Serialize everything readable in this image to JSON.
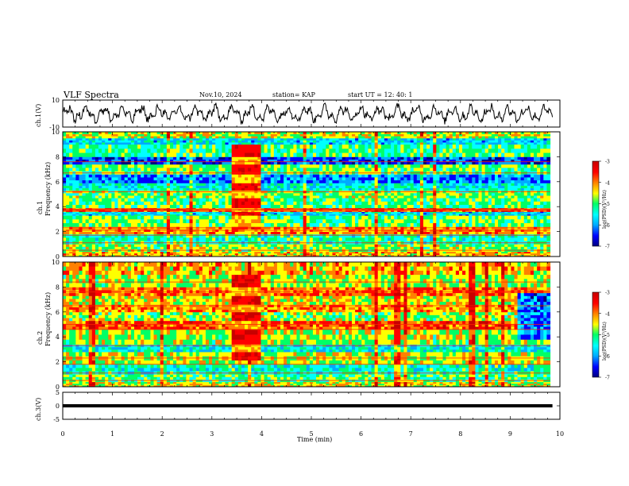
{
  "header": {
    "title": "VLF Spectra",
    "date": "Nov.10, 2024",
    "station": "station= KAP",
    "start": "start  UT =   12: 40: 1"
  },
  "colorbar": {
    "label": "log(PSD)(V²/Hz)",
    "ticks": [
      "-3",
      "-4",
      "-5",
      "-6",
      "-7"
    ],
    "range": [
      -7,
      -3
    ],
    "colors": [
      "#000080",
      "#0000ff",
      "#00aaff",
      "#00ffff",
      "#00ff66",
      "#ffff00",
      "#ff8000",
      "#ff0000",
      "#c80000"
    ]
  },
  "chart_data": [
    {
      "type": "line",
      "name": "ch.1 waveform",
      "ylabel": "ch.1(V)",
      "ylim": [
        -10,
        10
      ],
      "yticks": [
        "10",
        "-10"
      ],
      "xlim": [
        0,
        10
      ],
      "color": "#000000"
    },
    {
      "type": "heatmap",
      "name": "ch.1 spectrogram",
      "ylabel": "ch.1 Frequency (kHz)",
      "ylabel_top": "ch.1",
      "ylabel_bottom": "Frequency (kHz)",
      "ylim": [
        0,
        10
      ],
      "yticks": [
        "0",
        "2",
        "4",
        "6",
        "8",
        "10"
      ],
      "xlim": [
        0,
        9.8
      ],
      "bands_kHz": [
        {
          "f": [
            0.0,
            0.4
          ],
          "level": -4.3
        },
        {
          "f": [
            0.4,
            1.0
          ],
          "level": -4.8
        },
        {
          "f": [
            1.0,
            1.8
          ],
          "level": -5.2
        },
        {
          "f": [
            1.8,
            2.4
          ],
          "level": -4.2
        },
        {
          "f": [
            2.4,
            3.3
          ],
          "level": -4.9
        },
        {
          "f": [
            3.3,
            3.6
          ],
          "level": -5.6
        },
        {
          "f": [
            3.6,
            3.9
          ],
          "level": -3.9
        },
        {
          "f": [
            3.9,
            4.7
          ],
          "level": -5.0
        },
        {
          "f": [
            4.7,
            5.3
          ],
          "level": -4.8
        },
        {
          "f": [
            5.3,
            5.9
          ],
          "level": -5.4
        },
        {
          "f": [
            5.9,
            6.6
          ],
          "level": -6.0
        },
        {
          "f": [
            6.6,
            7.4
          ],
          "level": -4.9
        },
        {
          "f": [
            7.4,
            8.0
          ],
          "level": -6.2
        },
        {
          "f": [
            8.0,
            9.0
          ],
          "level": -5.1
        },
        {
          "f": [
            9.0,
            9.5
          ],
          "level": -5.6
        },
        {
          "f": [
            9.5,
            10.0
          ],
          "level": -4.6
        }
      ],
      "bursts_min": [
        {
          "t": [
            3.35,
            3.95
          ],
          "level": -3.6
        }
      ]
    },
    {
      "type": "heatmap",
      "name": "ch.2 spectrogram",
      "ylabel": "ch.2 Frequency (kHz)",
      "ylabel_top": "ch.2",
      "ylabel_bottom": "Frequency (kHz)",
      "ylim": [
        0,
        10
      ],
      "yticks": [
        "0",
        "2",
        "4",
        "6",
        "8",
        "10"
      ],
      "xlim": [
        0,
        9.8
      ],
      "bands_kHz": [
        {
          "f": [
            0.0,
            0.4
          ],
          "level": -4.5
        },
        {
          "f": [
            0.4,
            1.0
          ],
          "level": -5.0
        },
        {
          "f": [
            1.0,
            1.8
          ],
          "level": -5.3
        },
        {
          "f": [
            1.8,
            2.8
          ],
          "level": -4.6
        },
        {
          "f": [
            2.8,
            3.4
          ],
          "level": -5.5
        },
        {
          "f": [
            3.4,
            4.6
          ],
          "level": -4.7
        },
        {
          "f": [
            4.6,
            5.3
          ],
          "level": -3.9
        },
        {
          "f": [
            5.3,
            6.0
          ],
          "level": -4.8
        },
        {
          "f": [
            6.0,
            6.6
          ],
          "level": -4.2
        },
        {
          "f": [
            6.6,
            7.3
          ],
          "level": -4.5
        },
        {
          "f": [
            7.3,
            8.0
          ],
          "level": -4.0
        },
        {
          "f": [
            8.0,
            9.0
          ],
          "level": -4.7
        },
        {
          "f": [
            9.0,
            10.0
          ],
          "level": -4.3
        }
      ],
      "bursts_min": [
        {
          "t": [
            3.35,
            3.95
          ],
          "level": -3.5
        }
      ],
      "quiet_patch": {
        "t": [
          9.1,
          9.8
        ],
        "f": [
          3.6,
          7.6
        ],
        "level": -6.0
      }
    },
    {
      "type": "line",
      "name": "ch.3 waveform",
      "ylabel": "ch.3(V)",
      "ylim": [
        -5,
        5
      ],
      "yticks": [
        "5",
        "0",
        "-5"
      ],
      "xlim": [
        0,
        10
      ],
      "value_band": [
        -0.6,
        0.6
      ],
      "color": "#000000"
    }
  ],
  "xaxis": {
    "label": "Time  (min)",
    "ticks": [
      "0",
      "1",
      "2",
      "3",
      "4",
      "5",
      "6",
      "7",
      "8",
      "9",
      "10"
    ],
    "xlim": [
      0,
      10
    ]
  }
}
